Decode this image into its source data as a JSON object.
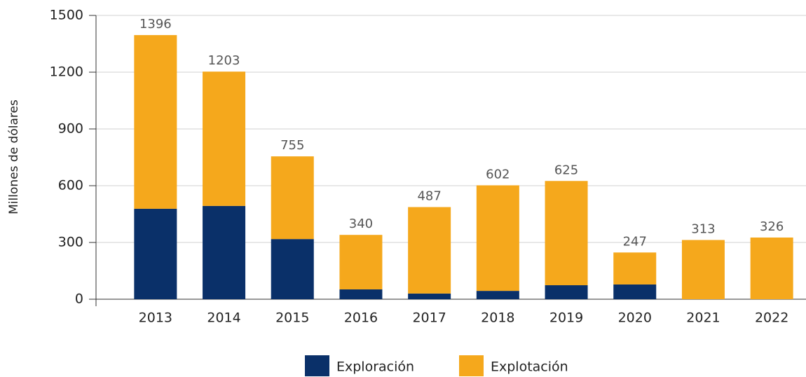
{
  "chart_data": {
    "type": "stacked_bar",
    "y_label": "Millones de dólares",
    "categories": [
      "2013",
      "2014",
      "2015",
      "2016",
      "2017",
      "2018",
      "2019",
      "2020",
      "2021",
      "2022"
    ],
    "series": [
      {
        "name": "Exploración",
        "color": "#0a3069",
        "values": [
          478,
          493,
          318,
          52,
          30,
          44,
          74,
          78,
          0,
          0
        ]
      },
      {
        "name": "Explotación",
        "color": "#f5a81c",
        "values": [
          918,
          710,
          437,
          288,
          457,
          558,
          551,
          169,
          313,
          326
        ]
      }
    ],
    "totals": [
      1396,
      1203,
      755,
      340,
      487,
      602,
      625,
      247,
      313,
      326
    ],
    "ylim": [
      0,
      1500
    ],
    "yticks": [
      0,
      300,
      600,
      900,
      1200,
      1500
    ],
    "grid": true,
    "legend": "bottom"
  }
}
